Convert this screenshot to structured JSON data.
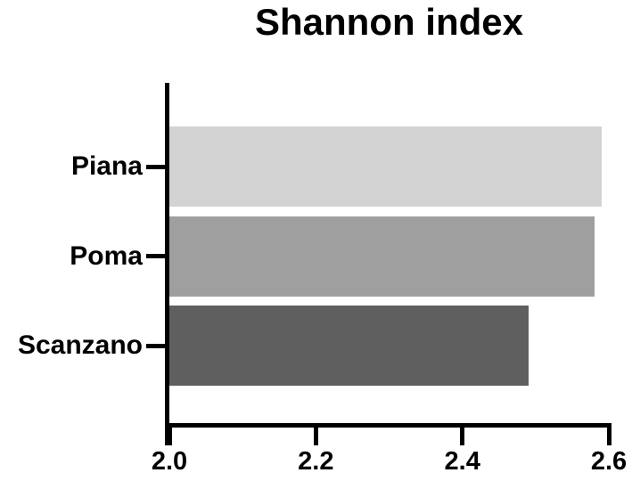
{
  "chart_data": {
    "type": "bar",
    "orientation": "horizontal",
    "title": "Shannon index",
    "categories": [
      "Piana",
      "Poma",
      "Scanzano"
    ],
    "values": [
      2.59,
      2.58,
      2.49
    ],
    "xlabel": "",
    "ylabel": "",
    "xlim": [
      2.0,
      2.6
    ],
    "xticks": [
      2.0,
      2.2,
      2.4,
      2.6
    ],
    "xtick_labels": [
      "2.0",
      "2.2",
      "2.4",
      "2.6"
    ],
    "grid": false,
    "legend": false,
    "bar_colors": [
      "#d3d3d3",
      "#9f9f9f",
      "#5f5f5f"
    ],
    "axis_color": "#000000",
    "text_color": "#000000",
    "background_color": "#ffffff"
  }
}
